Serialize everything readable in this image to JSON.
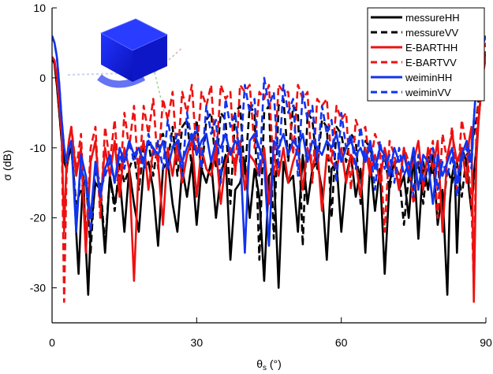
{
  "chart_data": {
    "type": "line",
    "title": "",
    "xlabel": "θs (°)",
    "xlabel_main": "θ",
    "xlabel_sub": "s",
    "xlabel_tail": " (°)",
    "ylabel": "σ (dB)",
    "xlim": [
      0,
      90
    ],
    "ylim": [
      -35,
      10
    ],
    "x_ticks": [
      0,
      30,
      60,
      90
    ],
    "y_ticks": [
      10,
      0,
      -10,
      -20,
      -30
    ],
    "x_tick_labels": [
      "0",
      "30",
      "60",
      "90"
    ],
    "y_tick_labels": [
      "10",
      "0",
      "-10",
      "-20",
      "-30"
    ],
    "grid": false,
    "legend_position": "top-right",
    "inset": "3D view of a blue rectangular box target",
    "series": [
      {
        "name": "messureHH",
        "color": "#000000",
        "dash": "solid",
        "x": [
          0,
          0.5,
          1,
          1.5,
          2,
          2.5,
          3,
          3.5,
          4,
          4.5,
          5,
          5.5,
          6,
          6.5,
          7,
          7.5,
          8,
          9,
          10,
          11,
          12,
          13,
          14,
          15,
          16,
          17,
          18,
          19,
          20,
          21,
          22,
          23,
          24,
          25,
          26,
          27,
          28,
          29,
          30,
          31,
          32,
          33,
          34,
          35,
          36,
          37,
          38,
          39,
          40,
          41,
          42,
          43,
          44,
          45,
          46,
          47,
          48,
          49,
          50,
          51,
          52,
          53,
          54,
          55,
          56,
          57,
          58,
          59,
          60,
          61,
          62,
          63,
          64,
          65,
          66,
          67,
          68,
          69,
          70,
          71,
          72,
          73,
          74,
          75,
          76,
          77,
          78,
          79,
          80,
          81,
          82,
          82.5,
          83,
          83.5,
          84,
          84.5,
          85,
          86,
          86.5,
          87,
          87.5,
          88,
          88.5,
          89,
          89.5,
          90
        ],
        "y": [
          3,
          2,
          -1,
          -5,
          -9,
          -12,
          -13,
          -11,
          -10,
          -14,
          -22,
          -28,
          -20,
          -14,
          -24,
          -31,
          -22,
          -15,
          -16,
          -25,
          -14,
          -18,
          -14,
          -22,
          -13,
          -18,
          -22,
          -13,
          -12,
          -16,
          -24,
          -13,
          -12,
          -18,
          -22,
          -13,
          -17,
          -12,
          -21,
          -13,
          -15,
          -12,
          -20,
          -14,
          -11,
          -26,
          -16,
          -15,
          -12,
          -20,
          -13,
          -17,
          -29,
          -14,
          -13,
          -30,
          -12,
          -15,
          -14,
          -22,
          -11,
          -18,
          -13,
          -12,
          -16,
          -26,
          -13,
          -12,
          -22,
          -14,
          -11,
          -17,
          -13,
          -25,
          -12,
          -19,
          -13,
          -28,
          -15,
          -12,
          -16,
          -14,
          -20,
          -11,
          -23,
          -12,
          -16,
          -11,
          -21,
          -16,
          -31,
          -18,
          -14,
          -12,
          -25,
          -16,
          -10,
          -12,
          -16,
          -19,
          -14,
          -10,
          -6,
          -2,
          1,
          3
        ]
      },
      {
        "name": "messureVV",
        "color": "#000000",
        "dash": "dashed",
        "x": [
          0,
          0.5,
          1,
          1.5,
          2,
          2.5,
          3,
          3.5,
          4,
          5,
          6,
          7,
          8,
          9,
          10,
          11,
          12,
          13,
          14,
          15,
          16,
          17,
          18,
          19,
          20,
          21,
          22,
          23,
          24,
          25,
          26,
          27,
          28,
          29,
          30,
          31,
          32,
          33,
          34,
          35,
          36,
          37,
          38,
          39,
          40,
          41,
          42,
          43,
          44,
          45,
          46,
          47,
          48,
          49,
          50,
          51,
          52,
          53,
          54,
          55,
          56,
          57,
          58,
          59,
          60,
          61,
          62,
          63,
          64,
          65,
          66,
          67,
          68,
          69,
          70,
          71,
          72,
          73,
          74,
          75,
          76,
          77,
          78,
          79,
          80,
          81,
          82,
          83,
          84,
          85,
          86,
          87,
          87.5,
          88,
          88.5,
          89,
          89.5,
          90
        ],
        "y": [
          3,
          2,
          -1,
          -5,
          -9,
          -12,
          -13,
          -11,
          -10,
          -18,
          -16,
          -14,
          -25,
          -13,
          -15,
          -24,
          -14,
          -19,
          -12,
          -15,
          -13,
          -11,
          -16,
          -10,
          -9,
          -14,
          -9,
          -8,
          -12,
          -7,
          -14,
          -7,
          -6,
          -13,
          -6,
          -14,
          -6,
          -5,
          -13,
          -5,
          -6,
          -18,
          -5,
          -4,
          -14,
          -4,
          -5,
          -26,
          -5,
          -4,
          -23,
          -4,
          -3,
          -12,
          -4,
          -5,
          -24,
          -5,
          -6,
          -13,
          -6,
          -7,
          -20,
          -7,
          -8,
          -12,
          -8,
          -9,
          -18,
          -9,
          -10,
          -13,
          -10,
          -11,
          -16,
          -12,
          -14,
          -21,
          -14,
          -16,
          -12,
          -18,
          -11,
          -14,
          -12,
          -20,
          -13,
          -15,
          -12,
          -17,
          -11,
          -10,
          -8,
          -6,
          -3,
          0,
          2,
          4
        ]
      },
      {
        "name": "E-BARTHH",
        "color": "#ee1111",
        "dash": "solid",
        "x": [
          0,
          0.5,
          1,
          1.5,
          2,
          2.5,
          3,
          3.5,
          4,
          5,
          6,
          7,
          8,
          9,
          10,
          11,
          12,
          13,
          14,
          15,
          16,
          17,
          18,
          19,
          20,
          21,
          22,
          23,
          24,
          25,
          26,
          27,
          28,
          29,
          30,
          31,
          32,
          33,
          34,
          35,
          36,
          37,
          38,
          39,
          40,
          41,
          42,
          43,
          44,
          45,
          46,
          47,
          48,
          49,
          50,
          51,
          52,
          53,
          54,
          55,
          56,
          57,
          58,
          59,
          60,
          61,
          62,
          63,
          64,
          65,
          66,
          67,
          68,
          69,
          70,
          71,
          72,
          73,
          74,
          75,
          76,
          77,
          78,
          79,
          80,
          81,
          82,
          83,
          84,
          85,
          86,
          86.5,
          87,
          87.5,
          88,
          88.5,
          89,
          89.5,
          90
        ],
        "y": [
          3,
          2.5,
          0,
          -4,
          -8,
          -22,
          -12,
          -9,
          -7,
          -14,
          -10,
          -25,
          -12,
          -9,
          -18,
          -10,
          -14,
          -9,
          -17,
          -10,
          -13,
          -29,
          -12,
          -9,
          -16,
          -10,
          -12,
          -21,
          -10,
          -14,
          -9,
          -15,
          -11,
          -9,
          -17,
          -10,
          -13,
          -14,
          -10,
          -18,
          -12,
          -10,
          -13,
          -9,
          -16,
          -11,
          -12,
          -14,
          -10,
          -18,
          -11,
          -14,
          -10,
          -15,
          -12,
          -10,
          -16,
          -10,
          -13,
          -10,
          -19,
          -11,
          -12,
          -13,
          -10,
          -15,
          -11,
          -12,
          -17,
          -10,
          -14,
          -11,
          -15,
          -10,
          -13,
          -12,
          -16,
          -10,
          -14,
          -12,
          -9,
          -16,
          -10,
          -13,
          -9,
          -22,
          -11,
          -8,
          -12,
          -10,
          -15,
          -9,
          -7,
          -32,
          -12,
          -6,
          -2,
          1,
          3
        ]
      },
      {
        "name": "E-BARTVV",
        "color": "#ee1111",
        "dash": "dashed",
        "x": [
          0,
          0.5,
          1,
          1.5,
          2,
          2.5,
          3,
          3.5,
          4,
          5,
          6,
          7,
          8,
          9,
          10,
          11,
          12,
          13,
          14,
          15,
          16,
          17,
          18,
          19,
          20,
          21,
          22,
          23,
          24,
          25,
          26,
          27,
          28,
          29,
          30,
          31,
          32,
          33,
          34,
          35,
          36,
          37,
          38,
          39,
          40,
          41,
          42,
          43,
          44,
          45,
          46,
          47,
          48,
          49,
          50,
          51,
          52,
          53,
          54,
          55,
          56,
          57,
          58,
          59,
          60,
          61,
          62,
          63,
          64,
          65,
          66,
          67,
          68,
          69,
          70,
          71,
          72,
          73,
          74,
          75,
          76,
          77,
          78,
          79,
          80,
          81,
          82,
          83,
          84,
          85,
          86,
          86.5,
          87,
          87.5,
          88,
          88.5,
          89,
          89.5,
          90
        ],
        "y": [
          3,
          2.5,
          0,
          -4,
          -8,
          -32,
          -14,
          -9,
          -7,
          -13,
          -8,
          -24,
          -10,
          -7,
          -20,
          -7,
          -12,
          -6,
          -16,
          -5,
          -10,
          -4,
          -15,
          -4,
          -8,
          -3,
          -13,
          -3,
          -6,
          -2,
          -12,
          -2,
          -5,
          -1,
          -11,
          -2,
          -4,
          -1,
          -12,
          -1,
          -3,
          -2,
          -14,
          -1,
          -2,
          -1,
          -10,
          -2,
          -3,
          -1,
          -14,
          -1,
          -2,
          -2,
          -11,
          -1,
          -3,
          -2,
          -15,
          -3,
          -4,
          -3,
          -12,
          -4,
          -6,
          -5,
          -16,
          -6,
          -8,
          -7,
          -13,
          -8,
          -10,
          -22,
          -9,
          -11,
          -15,
          -10,
          -12,
          -18,
          -11,
          -13,
          -12,
          -9,
          -20,
          -8,
          -12,
          -7,
          -16,
          -6,
          -10,
          -14,
          -18,
          -30,
          -8,
          -3,
          -1,
          2,
          5
        ]
      },
      {
        "name": "weiminHH",
        "color": "#1133ee",
        "dash": "solid",
        "x": [
          0,
          0.5,
          1,
          1.5,
          2,
          2.5,
          3,
          3.5,
          4,
          5,
          6,
          7,
          8,
          9,
          10,
          11,
          12,
          13,
          14,
          15,
          16,
          17,
          18,
          19,
          20,
          21,
          22,
          23,
          24,
          25,
          26,
          27,
          28,
          29,
          30,
          31,
          32,
          33,
          34,
          35,
          36,
          37,
          38,
          39,
          40,
          41,
          42,
          43,
          44,
          45,
          46,
          47,
          48,
          49,
          50,
          51,
          52,
          53,
          54,
          55,
          56,
          57,
          58,
          59,
          60,
          61,
          62,
          63,
          64,
          65,
          66,
          67,
          68,
          69,
          70,
          71,
          72,
          73,
          74,
          75,
          76,
          77,
          78,
          79,
          80,
          81,
          82,
          83,
          84,
          85,
          86,
          87,
          87.5,
          88,
          88.5,
          89,
          89.5,
          90
        ],
        "y": [
          6,
          5,
          3,
          -1,
          -6,
          -10,
          -12,
          -10,
          -9,
          -22,
          -11,
          -14,
          -20,
          -12,
          -17,
          -13,
          -11,
          -15,
          -10,
          -12,
          -9,
          -11,
          -10,
          -12,
          -9,
          -10,
          -11,
          -9,
          -13,
          -10,
          -9,
          -12,
          -10,
          -8,
          -11,
          -9,
          -8,
          -12,
          -9,
          -10,
          -8,
          -11,
          -9,
          -10,
          -25,
          -9,
          -8,
          -10,
          -12,
          -24,
          -9,
          -10,
          -8,
          -11,
          -9,
          -10,
          -8,
          -12,
          -9,
          -10,
          -11,
          -9,
          -10,
          -8,
          -12,
          -10,
          -9,
          -11,
          -10,
          -12,
          -9,
          -13,
          -10,
          -11,
          -14,
          -10,
          -12,
          -11,
          -14,
          -10,
          -16,
          -11,
          -12,
          -18,
          -11,
          -14,
          -12,
          -10,
          -15,
          -11,
          -9,
          -12,
          -6,
          -1,
          2,
          4,
          5,
          6
        ]
      },
      {
        "name": "weiminVV",
        "color": "#1133ee",
        "dash": "dashed",
        "x": [
          0,
          0.5,
          1,
          1.5,
          2,
          2.5,
          3,
          3.5,
          4,
          5,
          6,
          7,
          8,
          9,
          10,
          11,
          12,
          13,
          14,
          15,
          16,
          17,
          18,
          19,
          20,
          21,
          22,
          23,
          24,
          25,
          26,
          27,
          28,
          29,
          30,
          31,
          32,
          33,
          34,
          35,
          36,
          37,
          38,
          39,
          40,
          41,
          42,
          43,
          44,
          45,
          46,
          47,
          48,
          49,
          50,
          51,
          52,
          53,
          54,
          55,
          56,
          57,
          58,
          59,
          60,
          61,
          62,
          63,
          64,
          65,
          66,
          67,
          68,
          69,
          70,
          71,
          72,
          73,
          74,
          75,
          76,
          77,
          78,
          79,
          80,
          81,
          82,
          83,
          84,
          85,
          86,
          87,
          87.5,
          88,
          88.5,
          89,
          89.5,
          90
        ],
        "y": [
          6,
          5,
          3,
          -1,
          -6,
          -10,
          -12,
          -10,
          -9,
          -20,
          -13,
          -15,
          -22,
          -12,
          -16,
          -14,
          -12,
          -15,
          -11,
          -13,
          -9,
          -12,
          -10,
          -13,
          -8,
          -11,
          -9,
          -13,
          -6,
          -10,
          -8,
          -14,
          -5,
          -9,
          -7,
          -13,
          -4,
          -8,
          -6,
          -15,
          -3,
          -7,
          -5,
          -12,
          -1,
          -5,
          -3,
          -14,
          0,
          -4,
          -2,
          -13,
          -1,
          -5,
          -3,
          -14,
          -2,
          -6,
          -4,
          -12,
          -4,
          -8,
          -6,
          -15,
          -5,
          -10,
          -8,
          -13,
          -7,
          -12,
          -10,
          -16,
          -9,
          -13,
          -11,
          -15,
          -10,
          -14,
          -12,
          -17,
          -11,
          -15,
          -13,
          -10,
          -16,
          -12,
          -14,
          -11,
          -17,
          -12,
          -10,
          -13,
          -6,
          -1,
          2,
          4,
          5,
          6
        ]
      }
    ]
  }
}
